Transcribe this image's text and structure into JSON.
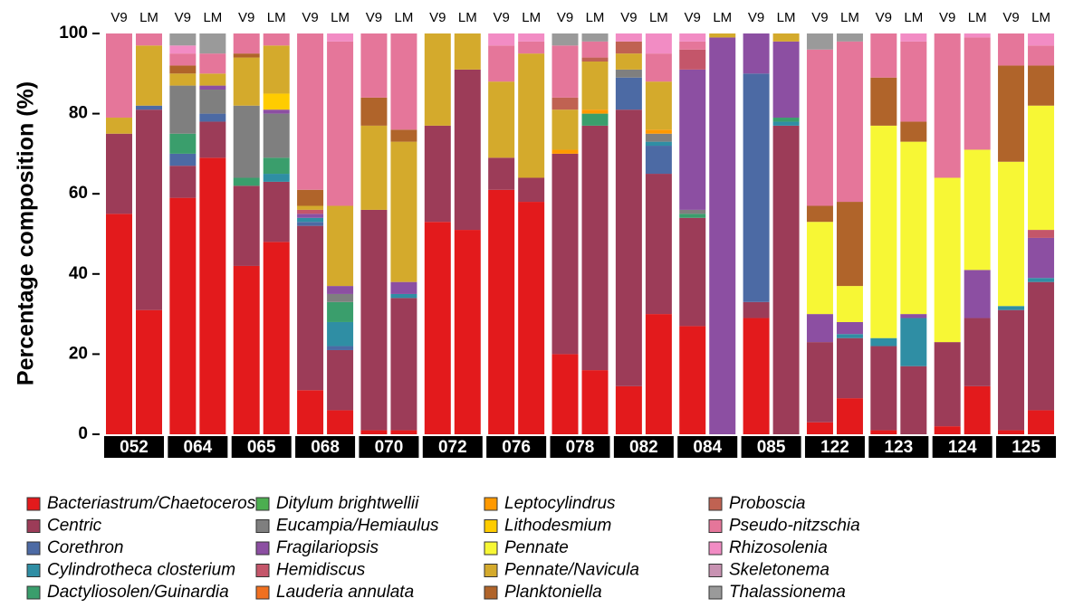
{
  "chart_data": {
    "type": "stacked_bar",
    "y_label": "Percentage composition (%)",
    "categories": [
      "052",
      "064",
      "065",
      "068",
      "070",
      "072",
      "076",
      "078",
      "082",
      "084",
      "085",
      "122",
      "123",
      "124",
      "125"
    ],
    "subgroups": [
      "V9",
      "LM"
    ],
    "ylim": [
      0,
      100
    ],
    "yticks": [
      0,
      20,
      40,
      60,
      80,
      100
    ],
    "series": [
      {
        "name": "Bacteriastrum/Chaetoceros",
        "color": "#e31a1c",
        "values": [
          [
            55,
            31
          ],
          [
            59,
            69
          ],
          [
            42,
            48
          ],
          [
            11,
            6
          ],
          [
            1,
            1
          ],
          [
            53,
            51
          ],
          [
            61,
            58
          ],
          [
            20,
            16
          ],
          [
            12,
            30
          ],
          [
            27,
            0
          ],
          [
            29,
            0
          ],
          [
            3,
            9
          ],
          [
            1,
            0
          ],
          [
            2,
            12
          ],
          [
            1,
            6
          ]
        ]
      },
      {
        "name": "Centric",
        "color": "#9c3c58",
        "values": [
          [
            20,
            50
          ],
          [
            8,
            9
          ],
          [
            20,
            15
          ],
          [
            41,
            15
          ],
          [
            55,
            33
          ],
          [
            24,
            40
          ],
          [
            8,
            6
          ],
          [
            50,
            61
          ],
          [
            69,
            35
          ],
          [
            27,
            0
          ],
          [
            4,
            77
          ],
          [
            20,
            15
          ],
          [
            21,
            17
          ],
          [
            21,
            17
          ],
          [
            30,
            32
          ]
        ]
      },
      {
        "name": "Corethron",
        "color": "#4c6aa4",
        "values": [
          [
            0,
            1
          ],
          [
            3,
            2
          ],
          [
            0,
            0
          ],
          [
            1,
            1
          ],
          [
            0,
            0
          ],
          [
            0,
            0
          ],
          [
            0,
            0
          ],
          [
            0,
            0
          ],
          [
            8,
            7
          ],
          [
            0,
            0
          ],
          [
            57,
            0
          ],
          [
            0,
            0
          ],
          [
            0,
            0
          ],
          [
            0,
            0
          ],
          [
            0,
            0
          ]
        ]
      },
      {
        "name": "Cylindrotheca closterium",
        "color": "#2f8ea4",
        "values": [
          [
            0,
            0
          ],
          [
            0,
            0
          ],
          [
            0,
            2
          ],
          [
            1,
            6
          ],
          [
            0,
            1
          ],
          [
            0,
            0
          ],
          [
            0,
            0
          ],
          [
            0,
            0
          ],
          [
            0,
            1
          ],
          [
            0,
            0
          ],
          [
            0,
            1
          ],
          [
            0,
            1
          ],
          [
            2,
            12
          ],
          [
            0,
            0
          ],
          [
            1,
            1
          ]
        ]
      },
      {
        "name": "Dactyliosolen/Guinardia",
        "color": "#3a9e6c",
        "values": [
          [
            0,
            0
          ],
          [
            5,
            0
          ],
          [
            2,
            4
          ],
          [
            0,
            5
          ],
          [
            0,
            0
          ],
          [
            0,
            0
          ],
          [
            0,
            0
          ],
          [
            0,
            3
          ],
          [
            0,
            0
          ],
          [
            1,
            0
          ],
          [
            0,
            1
          ],
          [
            0,
            0
          ],
          [
            0,
            0
          ],
          [
            0,
            0
          ],
          [
            0,
            0
          ]
        ]
      },
      {
        "name": "Ditylum brightwellii",
        "color": "#4cae50",
        "values": [
          [
            0,
            0
          ],
          [
            0,
            0
          ],
          [
            0,
            0
          ],
          [
            0,
            0
          ],
          [
            0,
            0
          ],
          [
            0,
            0
          ],
          [
            0,
            0
          ],
          [
            0,
            0
          ],
          [
            0,
            0
          ],
          [
            0,
            0
          ],
          [
            0,
            0
          ],
          [
            0,
            0
          ],
          [
            0,
            0
          ],
          [
            0,
            0
          ],
          [
            0,
            0
          ]
        ]
      },
      {
        "name": "Eucampia/Hemiaulus",
        "color": "#7f7f7f",
        "values": [
          [
            0,
            0
          ],
          [
            12,
            6
          ],
          [
            18,
            11
          ],
          [
            0,
            2
          ],
          [
            0,
            0
          ],
          [
            0,
            0
          ],
          [
            0,
            0
          ],
          [
            0,
            0
          ],
          [
            2,
            2
          ],
          [
            1,
            0
          ],
          [
            0,
            0
          ],
          [
            0,
            0
          ],
          [
            0,
            0
          ],
          [
            0,
            0
          ],
          [
            0,
            0
          ]
        ]
      },
      {
        "name": "Fragilariopsis",
        "color": "#8c4fa2",
        "values": [
          [
            0,
            0
          ],
          [
            0,
            1
          ],
          [
            0,
            1
          ],
          [
            1,
            2
          ],
          [
            0,
            3
          ],
          [
            0,
            0
          ],
          [
            0,
            0
          ],
          [
            0,
            0
          ],
          [
            0,
            0
          ],
          [
            35,
            99
          ],
          [
            10,
            19
          ],
          [
            7,
            3
          ],
          [
            0,
            1
          ],
          [
            0,
            12
          ],
          [
            0,
            10
          ]
        ]
      },
      {
        "name": "Hemidiscus",
        "color": "#c4566a",
        "values": [
          [
            0,
            0
          ],
          [
            0,
            0
          ],
          [
            0,
            0
          ],
          [
            1,
            0
          ],
          [
            0,
            0
          ],
          [
            0,
            0
          ],
          [
            0,
            0
          ],
          [
            0,
            0
          ],
          [
            0,
            0
          ],
          [
            5,
            0
          ],
          [
            0,
            0
          ],
          [
            0,
            0
          ],
          [
            0,
            0
          ],
          [
            0,
            0
          ],
          [
            0,
            2
          ]
        ]
      },
      {
        "name": "Lauderia annulata",
        "color": "#f07020",
        "values": [
          [
            0,
            0
          ],
          [
            0,
            0
          ],
          [
            0,
            0
          ],
          [
            0,
            0
          ],
          [
            0,
            0
          ],
          [
            0,
            0
          ],
          [
            0,
            0
          ],
          [
            0,
            0
          ],
          [
            0,
            0
          ],
          [
            0,
            0
          ],
          [
            0,
            0
          ],
          [
            0,
            0
          ],
          [
            0,
            0
          ],
          [
            0,
            0
          ],
          [
            0,
            0
          ]
        ]
      },
      {
        "name": "Leptocylindrus",
        "color": "#ff9900",
        "values": [
          [
            0,
            0
          ],
          [
            0,
            0
          ],
          [
            0,
            0
          ],
          [
            0,
            0
          ],
          [
            0,
            0
          ],
          [
            0,
            0
          ],
          [
            0,
            0
          ],
          [
            1,
            1
          ],
          [
            0,
            1
          ],
          [
            0,
            0
          ],
          [
            0,
            0
          ],
          [
            0,
            0
          ],
          [
            0,
            0
          ],
          [
            0,
            0
          ],
          [
            0,
            0
          ]
        ]
      },
      {
        "name": "Lithodesmium",
        "color": "#ffcc00",
        "values": [
          [
            0,
            0
          ],
          [
            0,
            0
          ],
          [
            0,
            4
          ],
          [
            0,
            0
          ],
          [
            0,
            0
          ],
          [
            0,
            0
          ],
          [
            0,
            0
          ],
          [
            0,
            0
          ],
          [
            0,
            0
          ],
          [
            0,
            0
          ],
          [
            0,
            0
          ],
          [
            0,
            0
          ],
          [
            0,
            0
          ],
          [
            0,
            0
          ],
          [
            0,
            0
          ]
        ]
      },
      {
        "name": "Pennate",
        "color": "#f7f735",
        "values": [
          [
            0,
            0
          ],
          [
            0,
            0
          ],
          [
            0,
            0
          ],
          [
            0,
            0
          ],
          [
            0,
            0
          ],
          [
            0,
            0
          ],
          [
            0,
            0
          ],
          [
            0,
            0
          ],
          [
            0,
            0
          ],
          [
            0,
            0
          ],
          [
            0,
            0
          ],
          [
            23,
            9
          ],
          [
            53,
            43
          ],
          [
            41,
            30
          ],
          [
            36,
            31
          ]
        ]
      },
      {
        "name": "Pennate/Navicula",
        "color": "#d4aa2c",
        "values": [
          [
            4,
            15
          ],
          [
            3,
            3
          ],
          [
            12,
            12
          ],
          [
            1,
            20
          ],
          [
            21,
            35
          ],
          [
            23,
            9
          ],
          [
            19,
            31
          ],
          [
            10,
            12
          ],
          [
            4,
            12
          ],
          [
            0,
            1
          ],
          [
            0,
            2
          ],
          [
            0,
            0
          ],
          [
            0,
            0
          ],
          [
            0,
            0
          ],
          [
            0,
            0
          ]
        ]
      },
      {
        "name": "Planktoniella",
        "color": "#b0642a",
        "values": [
          [
            0,
            0
          ],
          [
            2,
            0
          ],
          [
            1,
            0
          ],
          [
            4,
            0
          ],
          [
            7,
            3
          ],
          [
            0,
            0
          ],
          [
            0,
            0
          ],
          [
            0,
            0
          ],
          [
            0,
            0
          ],
          [
            0,
            0
          ],
          [
            0,
            0
          ],
          [
            4,
            21
          ],
          [
            12,
            5
          ],
          [
            0,
            0
          ],
          [
            24,
            10
          ]
        ]
      },
      {
        "name": "Proboscia",
        "color": "#c06252",
        "values": [
          [
            0,
            0
          ],
          [
            0,
            0
          ],
          [
            0,
            0
          ],
          [
            0,
            0
          ],
          [
            0,
            0
          ],
          [
            0,
            0
          ],
          [
            0,
            0
          ],
          [
            3,
            1
          ],
          [
            3,
            0
          ],
          [
            0,
            0
          ],
          [
            0,
            0
          ],
          [
            0,
            0
          ],
          [
            0,
            0
          ],
          [
            0,
            0
          ],
          [
            0,
            0
          ]
        ]
      },
      {
        "name": "Pseudo-nitzschia",
        "color": "#e5769a",
        "values": [
          [
            21,
            3
          ],
          [
            3,
            5
          ],
          [
            5,
            3
          ],
          [
            39,
            41
          ],
          [
            16,
            24
          ],
          [
            0,
            0
          ],
          [
            9,
            3
          ],
          [
            13,
            4
          ],
          [
            0,
            7
          ],
          [
            2,
            0
          ],
          [
            0,
            0
          ],
          [
            39,
            40
          ],
          [
            11,
            20
          ],
          [
            36,
            28
          ],
          [
            8,
            5
          ]
        ]
      },
      {
        "name": "Rhizosolenia",
        "color": "#f28cc4",
        "values": [
          [
            0,
            0
          ],
          [
            2,
            0
          ],
          [
            0,
            0
          ],
          [
            0,
            2
          ],
          [
            0,
            0
          ],
          [
            0,
            0
          ],
          [
            3,
            2
          ],
          [
            0,
            0
          ],
          [
            2,
            5
          ],
          [
            2,
            0
          ],
          [
            0,
            0
          ],
          [
            0,
            0
          ],
          [
            0,
            2
          ],
          [
            0,
            1
          ],
          [
            0,
            3
          ]
        ]
      },
      {
        "name": "Skeletonema",
        "color": "#c892b2",
        "values": [
          [
            0,
            0
          ],
          [
            0,
            0
          ],
          [
            0,
            0
          ],
          [
            0,
            0
          ],
          [
            0,
            0
          ],
          [
            0,
            0
          ],
          [
            0,
            0
          ],
          [
            0,
            0
          ],
          [
            0,
            0
          ],
          [
            0,
            0
          ],
          [
            0,
            0
          ],
          [
            0,
            0
          ],
          [
            0,
            0
          ],
          [
            0,
            0
          ],
          [
            0,
            0
          ]
        ]
      },
      {
        "name": "Thalassionema",
        "color": "#9a9a9a",
        "values": [
          [
            0,
            0
          ],
          [
            3,
            5
          ],
          [
            0,
            0
          ],
          [
            0,
            0
          ],
          [
            0,
            0
          ],
          [
            0,
            0
          ],
          [
            0,
            0
          ],
          [
            3,
            2
          ],
          [
            0,
            0
          ],
          [
            0,
            0
          ],
          [
            0,
            0
          ],
          [
            4,
            2
          ],
          [
            0,
            0
          ],
          [
            0,
            0
          ],
          [
            0,
            0
          ]
        ]
      }
    ]
  }
}
